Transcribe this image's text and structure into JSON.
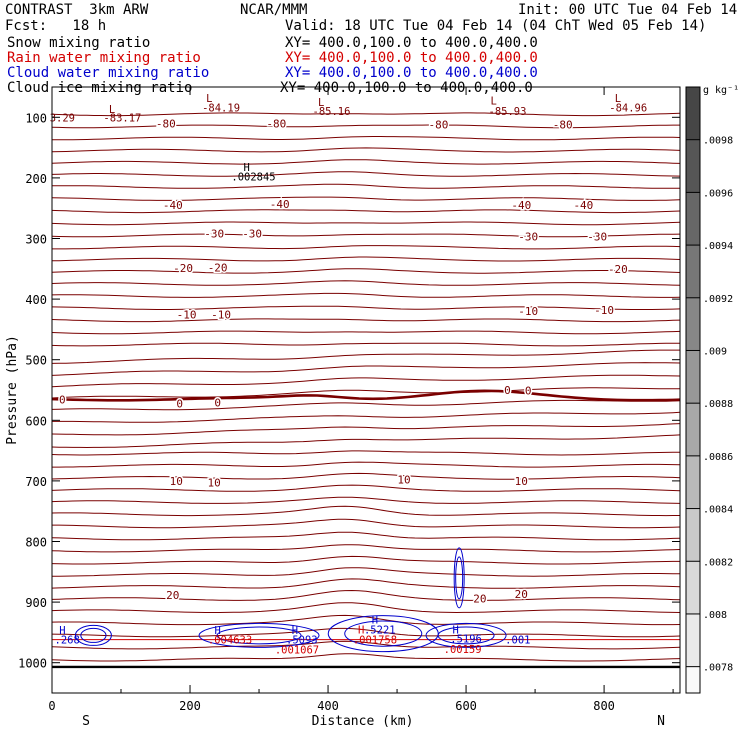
{
  "header": {
    "title": "CONTRAST  3km ARW",
    "org": "NCAR/MMM",
    "init": "Init: 00 UTC Tue 04 Feb 14",
    "fcst": "Fcst:   18 h",
    "valid": "Valid: 18 UTC Tue 04 Feb 14 (04 ChT Wed 05 Feb 14)",
    "fields": [
      {
        "name": "Snow mixing ratio",
        "xy": "XY= 400.0,100.0 to 400.0,400.0",
        "color": "#000000"
      },
      {
        "name": "Rain water mixing ratio",
        "xy": "XY= 400.0,100.0 to 400.0,400.0",
        "color": "#d40000"
      },
      {
        "name": "Cloud water mixing ratio",
        "xy": "XY= 400.0,100.0 to 400.0,400.0",
        "color": "#0000cc"
      },
      {
        "name": "Cloud ice mixing ratio",
        "xy": "XY= 400.0,100.0 to 400.0,400.0",
        "color": "#000000"
      }
    ]
  },
  "chart_data": {
    "type": "cross-section contour",
    "xlabel": "Distance (km)",
    "ylabel": "Pressure (hPa)",
    "xlim": [
      0,
      910
    ],
    "ylim": [
      1050,
      50
    ],
    "x_ticks": [
      0,
      200,
      400,
      600,
      800
    ],
    "y_ticks": [
      100,
      200,
      300,
      400,
      500,
      600,
      700,
      800,
      900,
      1000
    ],
    "x_end_labels": {
      "left": "S",
      "right": "N"
    },
    "colorbar": {
      "unit": "g kg⁻¹",
      "labels": [
        ".0098",
        ".0096",
        ".0094",
        ".0092",
        ".009",
        ".0088",
        ".0086",
        ".0084",
        ".0082",
        ".008",
        ".0078"
      ]
    },
    "temperature_labels": [
      {
        "text": "-80",
        "x": 165,
        "p": 110
      },
      {
        "text": "-80",
        "x": 325,
        "p": 110
      },
      {
        "text": "-80",
        "x": 560,
        "p": 112
      },
      {
        "text": "-80",
        "x": 740,
        "p": 112
      },
      {
        "text": "-40",
        "x": 175,
        "p": 245
      },
      {
        "text": "-40",
        "x": 330,
        "p": 243
      },
      {
        "text": "-40",
        "x": 680,
        "p": 245
      },
      {
        "text": "-40",
        "x": 770,
        "p": 245
      },
      {
        "text": "-30",
        "x": 235,
        "p": 292
      },
      {
        "text": "-30",
        "x": 290,
        "p": 292
      },
      {
        "text": "-30",
        "x": 690,
        "p": 297
      },
      {
        "text": "-30",
        "x": 790,
        "p": 297
      },
      {
        "text": "-20",
        "x": 190,
        "p": 349
      },
      {
        "text": "-20",
        "x": 240,
        "p": 348
      },
      {
        "text": "-20",
        "x": 820,
        "p": 350
      },
      {
        "text": "-10",
        "x": 195,
        "p": 425
      },
      {
        "text": "-10",
        "x": 245,
        "p": 425
      },
      {
        "text": "-10",
        "x": 690,
        "p": 420
      },
      {
        "text": "-10",
        "x": 800,
        "p": 418
      },
      {
        "text": "0",
        "x": 15,
        "p": 566
      },
      {
        "text": "0",
        "x": 185,
        "p": 572
      },
      {
        "text": "0",
        "x": 240,
        "p": 571
      },
      {
        "text": "0",
        "x": 660,
        "p": 550
      },
      {
        "text": "0",
        "x": 690,
        "p": 551
      },
      {
        "text": "10",
        "x": 180,
        "p": 700
      },
      {
        "text": "10",
        "x": 235,
        "p": 703
      },
      {
        "text": "10",
        "x": 510,
        "p": 698
      },
      {
        "text": "10",
        "x": 680,
        "p": 700
      },
      {
        "text": "20",
        "x": 175,
        "p": 888
      },
      {
        "text": "20",
        "x": 620,
        "p": 894
      },
      {
        "text": "20",
        "x": 680,
        "p": 887
      }
    ],
    "extrema_labels": [
      {
        "text": "L",
        "x": 228,
        "p": 68,
        "color": "#7a0000"
      },
      {
        "text": "-84.19",
        "x": 245,
        "p": 84,
        "color": "#7a0000"
      },
      {
        "text": "L",
        "x": 87,
        "p": 86,
        "color": "#7a0000"
      },
      {
        "text": "-83.17",
        "x": 102,
        "p": 100,
        "color": "#7a0000"
      },
      {
        "text": "3.29",
        "x": 15,
        "p": 100,
        "color": "#7a0000"
      },
      {
        "text": "L",
        "x": 390,
        "p": 75,
        "color": "#7a0000"
      },
      {
        "text": "-85.16",
        "x": 405,
        "p": 90,
        "color": "#7a0000"
      },
      {
        "text": "L",
        "x": 640,
        "p": 72,
        "color": "#7a0000"
      },
      {
        "text": "-85.93",
        "x": 660,
        "p": 90,
        "color": "#7a0000"
      },
      {
        "text": "L",
        "x": 820,
        "p": 68,
        "color": "#7a0000"
      },
      {
        "text": "-84.96",
        "x": 835,
        "p": 84,
        "color": "#7a0000"
      },
      {
        "text": "H",
        "x": 282,
        "p": 182,
        "color": "#000000"
      },
      {
        "text": ".002845",
        "x": 292,
        "p": 198,
        "color": "#000000"
      },
      {
        "text": "H",
        "x": 15,
        "p": 946,
        "color": "#0000cc"
      },
      {
        "text": ".268",
        "x": 22,
        "p": 962,
        "color": "#0000cc"
      },
      {
        "text": "H",
        "x": 240,
        "p": 946,
        "color": "#0000cc"
      },
      {
        "text": ".004633",
        "x": 258,
        "p": 962,
        "color": "#d40000"
      },
      {
        "text": "H",
        "x": 352,
        "p": 946,
        "color": "#0000cc"
      },
      {
        "text": ".5093",
        "x": 362,
        "p": 962,
        "color": "#0000cc"
      },
      {
        "text": ".001067",
        "x": 355,
        "p": 978,
        "color": "#d40000"
      },
      {
        "text": "H",
        "x": 448,
        "p": 945,
        "color": "#d40000"
      },
      {
        "text": ".001758",
        "x": 468,
        "p": 962,
        "color": "#d40000"
      },
      {
        "text": "H",
        "x": 468,
        "p": 929,
        "color": "#0000cc"
      },
      {
        "text": ".5221",
        "x": 475,
        "p": 945,
        "color": "#0000cc"
      },
      {
        "text": "H",
        "x": 585,
        "p": 945,
        "color": "#0000cc"
      },
      {
        "text": ".5196",
        "x": 600,
        "p": 960,
        "color": "#0000cc"
      },
      {
        "text": ".00159",
        "x": 595,
        "p": 977,
        "color": "#d40000"
      },
      {
        "text": ".001",
        "x": 675,
        "p": 962,
        "color": "#0000cc"
      }
    ]
  }
}
